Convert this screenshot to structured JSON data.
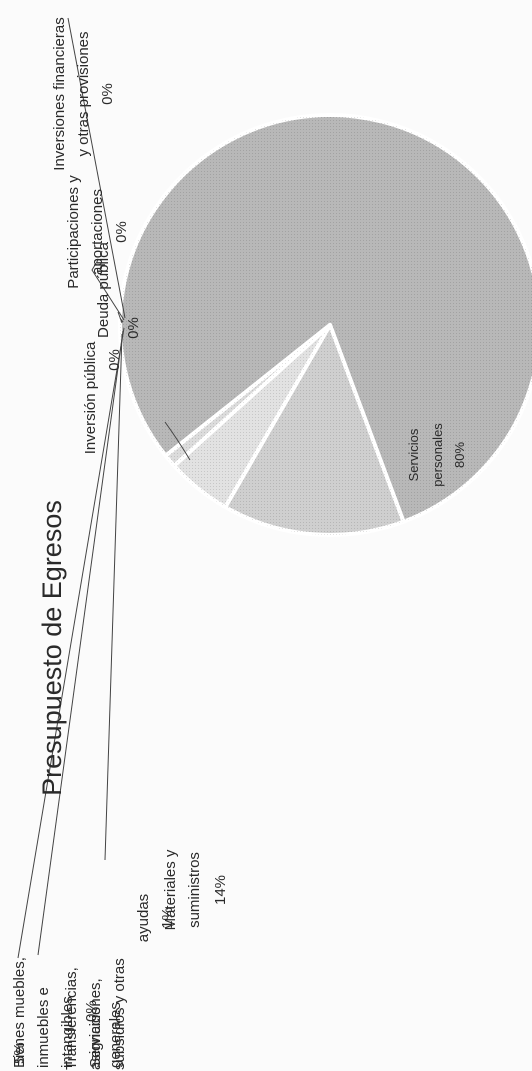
{
  "chart_data": {
    "type": "pie",
    "title": "Presupuesto de Egresos",
    "series": [
      {
        "categories": [
          "Servicios personales",
          "Materiales y suministros",
          "Servicios generales",
          "Transferencias, asignaciones, subsidios y otras ayudas",
          "Bienes muebles, inmuebles e intangibles",
          "Inversión pública",
          "Inversiones financieras y otras provisiones",
          "Participaciones y aportaciones",
          "Deuda pública"
        ],
        "values": [
          80,
          14,
          5,
          1,
          0,
          0,
          0,
          0,
          0
        ],
        "labels": [
          "80%",
          "14%",
          "5%",
          "1%",
          "0%",
          "0%",
          "0%",
          "0%",
          "0%"
        ]
      }
    ],
    "legend": "none",
    "colors": [
      "#b8b8b8",
      "#cfcfcf",
      "#e2e2e2",
      "#dcdcdc",
      "#e8e8e8"
    ]
  },
  "text": {
    "title": "Presupuesto de Egresos",
    "servicios_personales": {
      "line1": "Servicios",
      "line2": "personales",
      "pct": "80%"
    },
    "materiales": {
      "line1": "Materiales y",
      "line2": "suministros",
      "pct": "14%"
    },
    "servicios_generales": {
      "line1": "Servicios",
      "line2": "generales",
      "pct": "5%"
    },
    "transferencias": {
      "line1": "Transferencias,",
      "line2": "asignaciones,",
      "line3": "subsidios y otras",
      "line4": "ayudas",
      "pct": "1%"
    },
    "bienes": {
      "line1": "Bienes muebles,",
      "line2": "inmuebles e",
      "line3": "intangibles",
      "pct": "0%"
    },
    "inversion_publica": {
      "line1": "Inversión pública",
      "pct": "0%"
    },
    "deuda_publica": {
      "line1": "Deuda pública",
      "pct": "0%"
    },
    "participaciones": {
      "line1": "Participaciones y",
      "line2": "aportaciones",
      "pct": "0%"
    },
    "inversiones_financieras": {
      "line1": "Inversiones financieras",
      "line2": "y otras provisiones",
      "pct": "0%"
    }
  }
}
